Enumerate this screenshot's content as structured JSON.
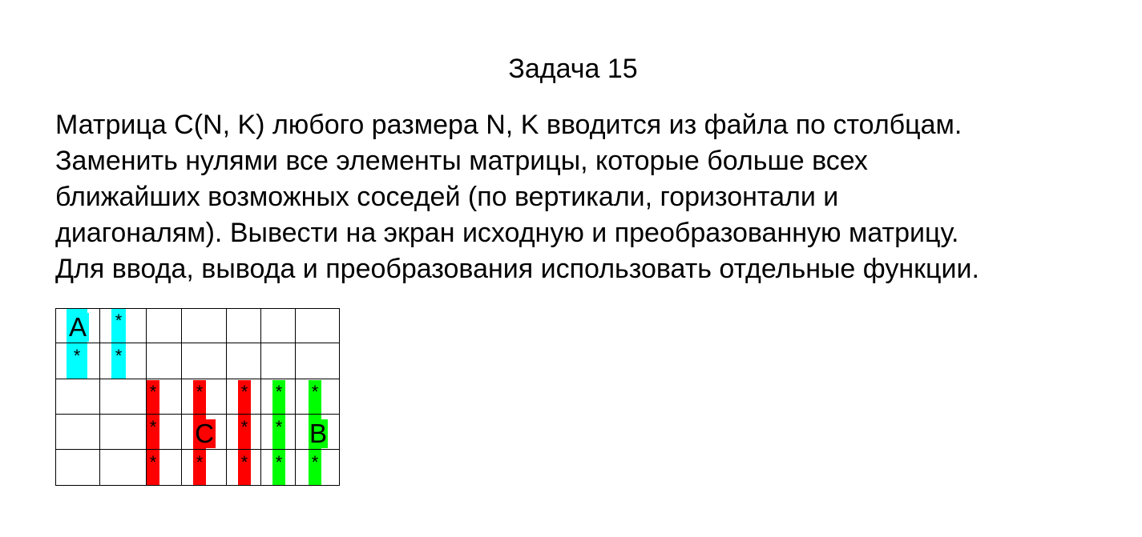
{
  "title": "Задача 15",
  "task_lines": [
    "Матрица C(N, K) любого размера N, K вводится из файла по столбцам.",
    "Заменить нулями все элементы матрицы, которые больше всех",
    "ближайших возможных соседей (по вертикали, горизонтали и",
    "диагоналям). Вывести на экран исходную и преобразованную матрицу.",
    "Для ввода, вывода и преобразования использовать отдельные функции."
  ],
  "colors": {
    "cyan": "#00ffff",
    "red": "#ff0000",
    "green": "#00ff00",
    "grid_line": "#000000"
  },
  "grid": {
    "rows": 5,
    "cols": 7,
    "highlights": [
      {
        "color": "cyan",
        "col": 0,
        "row_from": 0,
        "row_to": 1
      },
      {
        "color": "cyan",
        "col": 1,
        "row_from": 0,
        "row_to": 1
      },
      {
        "color": "red",
        "col": 2,
        "row_from": 2,
        "row_to": 4
      },
      {
        "color": "red",
        "col": 3,
        "row_from": 2,
        "row_to": 4
      },
      {
        "color": "red",
        "col": 4,
        "row_from": 2,
        "row_to": 4
      },
      {
        "color": "green",
        "col": 5,
        "row_from": 2,
        "row_to": 4
      },
      {
        "color": "green",
        "col": 6,
        "row_from": 2,
        "row_to": 4
      }
    ],
    "marks": [
      {
        "row": 0,
        "col": 0,
        "text": "A"
      },
      {
        "row": 0,
        "col": 1,
        "text": "*"
      },
      {
        "row": 1,
        "col": 0,
        "text": "*"
      },
      {
        "row": 1,
        "col": 1,
        "text": "*"
      },
      {
        "row": 2,
        "col": 2,
        "text": "*"
      },
      {
        "row": 2,
        "col": 3,
        "text": "*"
      },
      {
        "row": 2,
        "col": 4,
        "text": "*"
      },
      {
        "row": 2,
        "col": 5,
        "text": "*"
      },
      {
        "row": 2,
        "col": 6,
        "text": "*"
      },
      {
        "row": 3,
        "col": 2,
        "text": "*"
      },
      {
        "row": 3,
        "col": 3,
        "text": "C"
      },
      {
        "row": 3,
        "col": 4,
        "text": "*"
      },
      {
        "row": 3,
        "col": 5,
        "text": "*"
      },
      {
        "row": 3,
        "col": 6,
        "text": "B"
      },
      {
        "row": 4,
        "col": 2,
        "text": "*"
      },
      {
        "row": 4,
        "col": 3,
        "text": "*"
      },
      {
        "row": 4,
        "col": 4,
        "text": "*"
      },
      {
        "row": 4,
        "col": 5,
        "text": "*"
      },
      {
        "row": 4,
        "col": 6,
        "text": "*"
      }
    ]
  }
}
